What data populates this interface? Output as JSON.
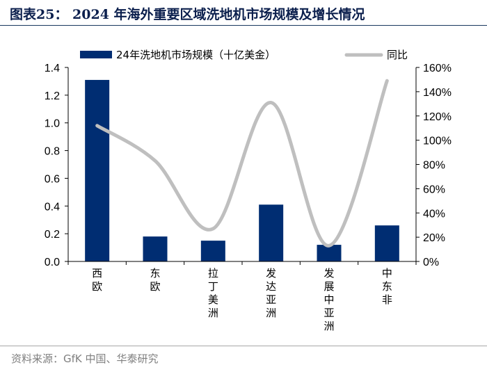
{
  "figure_title": "图表25：  2024 年海外重要区域洗地机市场规模及增长情况",
  "source": "资料来源：GfK 中国、华泰研究",
  "colors": {
    "bar": "#002d72",
    "line": "#bfbfbf",
    "title": "#0b1f4d"
  },
  "chart_data": {
    "type": "bar+line",
    "title": "",
    "categories": [
      "西欧",
      "东欧",
      "拉丁美洲",
      "发达亚洲",
      "发展中亚洲",
      "中东非"
    ],
    "series": [
      {
        "name": "24年洗地机市场规模（十亿美金）",
        "type": "bar",
        "axis": "left",
        "values": [
          1.31,
          0.18,
          0.15,
          0.41,
          0.12,
          0.26
        ]
      },
      {
        "name": "同比",
        "type": "line",
        "axis": "right",
        "values": [
          112,
          83,
          27,
          131,
          13,
          149
        ]
      }
    ],
    "y_left": {
      "ylim": [
        0,
        1.4
      ],
      "ticks": [
        "0.0",
        "0.2",
        "0.4",
        "0.6",
        "0.8",
        "1.0",
        "1.2",
        "1.4"
      ]
    },
    "y_right": {
      "ylim": [
        0,
        160
      ],
      "ticks": [
        "0%",
        "20%",
        "40%",
        "60%",
        "80%",
        "100%",
        "120%",
        "140%",
        "160%"
      ]
    },
    "grid": false,
    "legend": "top"
  }
}
